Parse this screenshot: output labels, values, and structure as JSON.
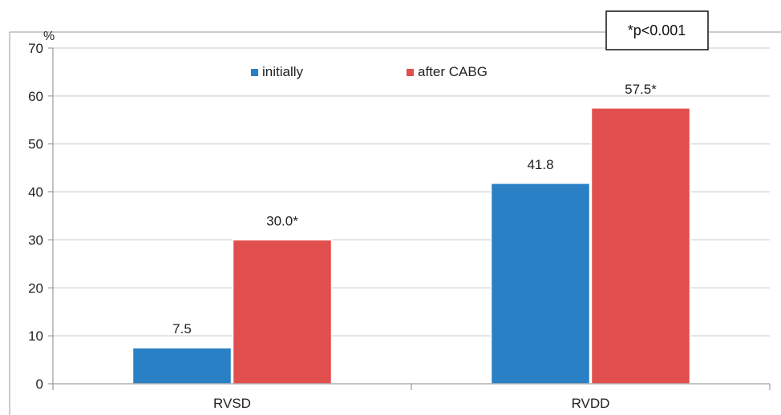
{
  "chart_data": {
    "type": "bar",
    "categories": [
      "RVSD",
      "RVDD"
    ],
    "series": [
      {
        "name": "initially",
        "values": [
          7.5,
          41.8
        ],
        "labels": [
          "7.5",
          "41.8"
        ],
        "color": "#2980c4"
      },
      {
        "name": "after CABG",
        "values": [
          30.0,
          57.5
        ],
        "labels": [
          "30.0*",
          "57.5*"
        ],
        "color": "#e04e4e"
      }
    ],
    "ylabel": "%",
    "ylim": [
      0,
      70
    ],
    "yticks": [
      0,
      10,
      20,
      30,
      40,
      50,
      60,
      70
    ],
    "grid": true,
    "legend": "top",
    "annotation": "*p<0.001"
  }
}
